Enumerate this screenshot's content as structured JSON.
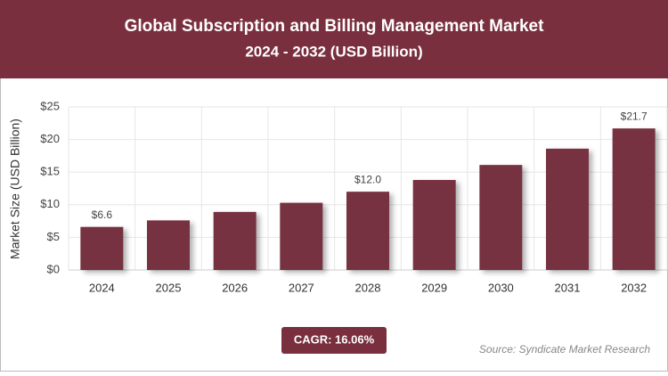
{
  "chart_data": {
    "type": "bar",
    "title": "Global Subscription and Billing Management Market",
    "subtitle": "2024 - 2032 (USD Billion)",
    "y_label": "Market Size (USD Billion)",
    "categories": [
      "2024",
      "2025",
      "2026",
      "2027",
      "2028",
      "2029",
      "2030",
      "2031",
      "2032"
    ],
    "values": [
      6.6,
      7.6,
      8.9,
      10.3,
      12.0,
      13.8,
      16.1,
      18.6,
      21.7
    ],
    "value_labels": [
      "$6.6",
      null,
      null,
      null,
      "$12.0",
      null,
      null,
      null,
      "$21.7"
    ],
    "color": "#76303f",
    "ylim": [
      0,
      25
    ],
    "yticks": [
      {
        "value": 0,
        "label": "$0"
      },
      {
        "value": 5,
        "label": "$5"
      },
      {
        "value": 10,
        "label": "$10"
      },
      {
        "value": 15,
        "label": "$15"
      },
      {
        "value": 20,
        "label": "$20"
      },
      {
        "value": 25,
        "label": "$25"
      }
    ],
    "grid": true,
    "cagr": "CAGR: 16.06%",
    "source": "Source: Syndicate Market Research"
  }
}
